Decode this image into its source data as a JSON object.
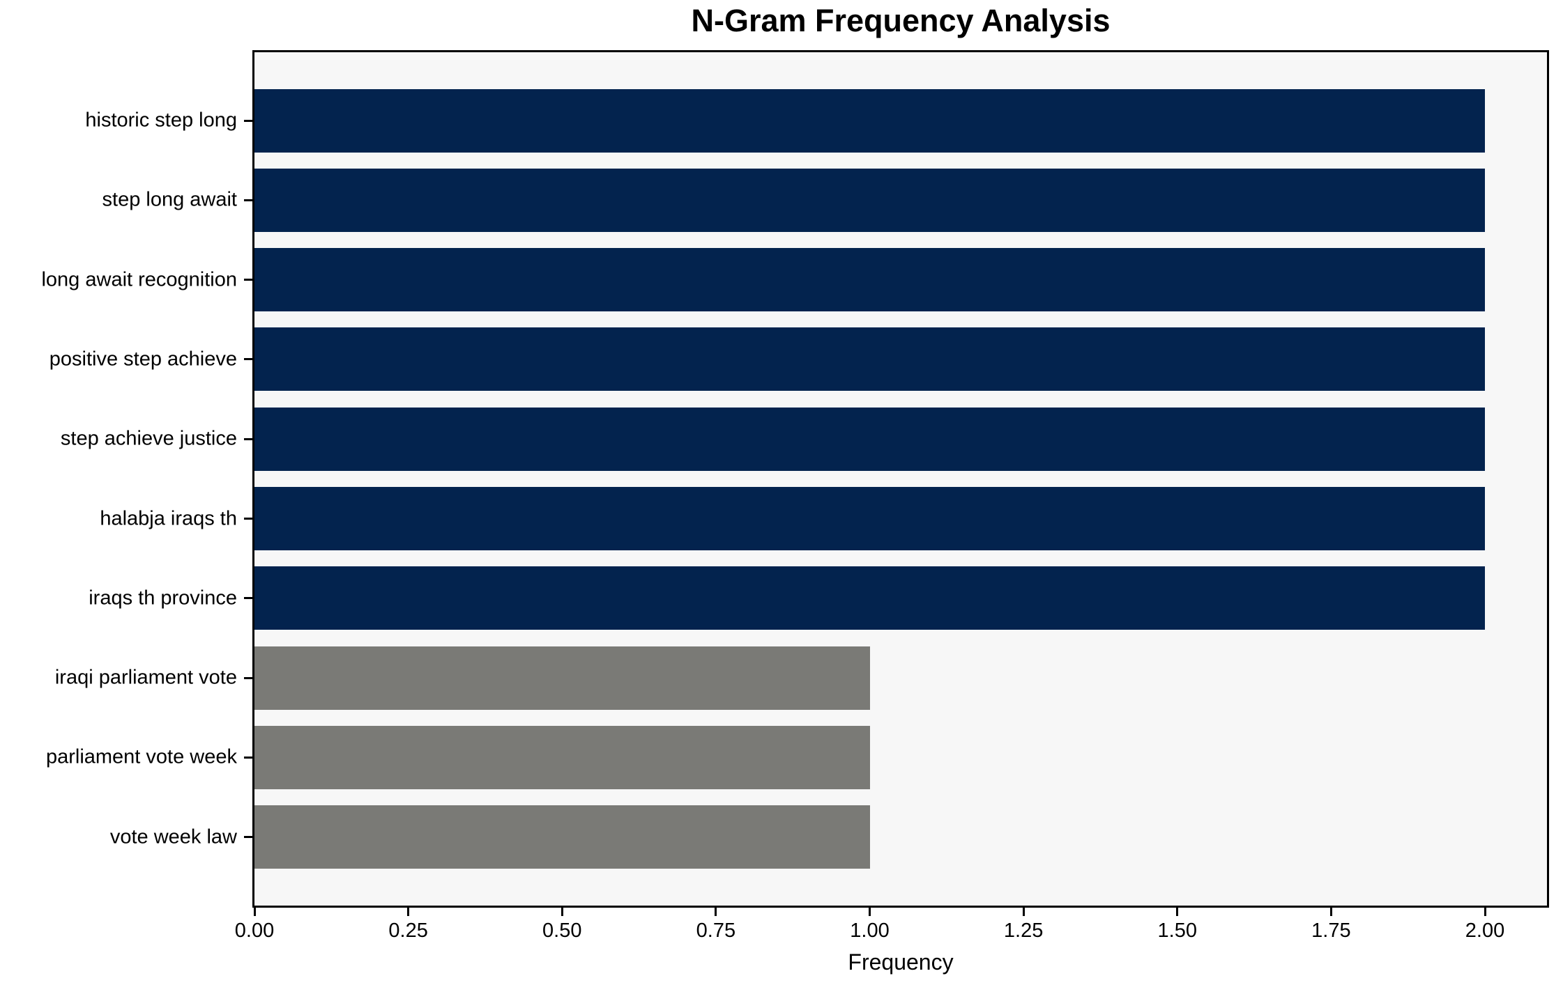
{
  "chart_data": {
    "type": "bar",
    "orientation": "horizontal",
    "title": "N-Gram Frequency Analysis",
    "xlabel": "Frequency",
    "ylabel": "",
    "categories": [
      "historic step long",
      "step long await",
      "long await recognition",
      "positive step achieve",
      "step achieve justice",
      "halabja iraqs th",
      "iraqs th province",
      "iraqi parliament vote",
      "parliament vote week",
      "vote week law"
    ],
    "values": [
      2,
      2,
      2,
      2,
      2,
      2,
      2,
      1,
      1,
      1
    ],
    "bar_colors": [
      "#03234e",
      "#03234e",
      "#03234e",
      "#03234e",
      "#03234e",
      "#03234e",
      "#03234e",
      "#7a7a76",
      "#7a7a76",
      "#7a7a76"
    ],
    "xticks": [
      {
        "value": 0.0,
        "label": "0.00"
      },
      {
        "value": 0.25,
        "label": "0.25"
      },
      {
        "value": 0.5,
        "label": "0.50"
      },
      {
        "value": 0.75,
        "label": "0.75"
      },
      {
        "value": 1.0,
        "label": "1.00"
      },
      {
        "value": 1.25,
        "label": "1.25"
      },
      {
        "value": 1.5,
        "label": "1.50"
      },
      {
        "value": 1.75,
        "label": "1.75"
      },
      {
        "value": 2.0,
        "label": "2.00"
      }
    ],
    "xlim": [
      0,
      2.1
    ],
    "grid": false,
    "legend": null,
    "colors": {
      "high_frequency_bar": "#03234e",
      "low_frequency_bar": "#7a7a76",
      "plot_background": "#f7f7f7",
      "figure_background": "#ffffff",
      "axis_frame": "#000000"
    }
  }
}
